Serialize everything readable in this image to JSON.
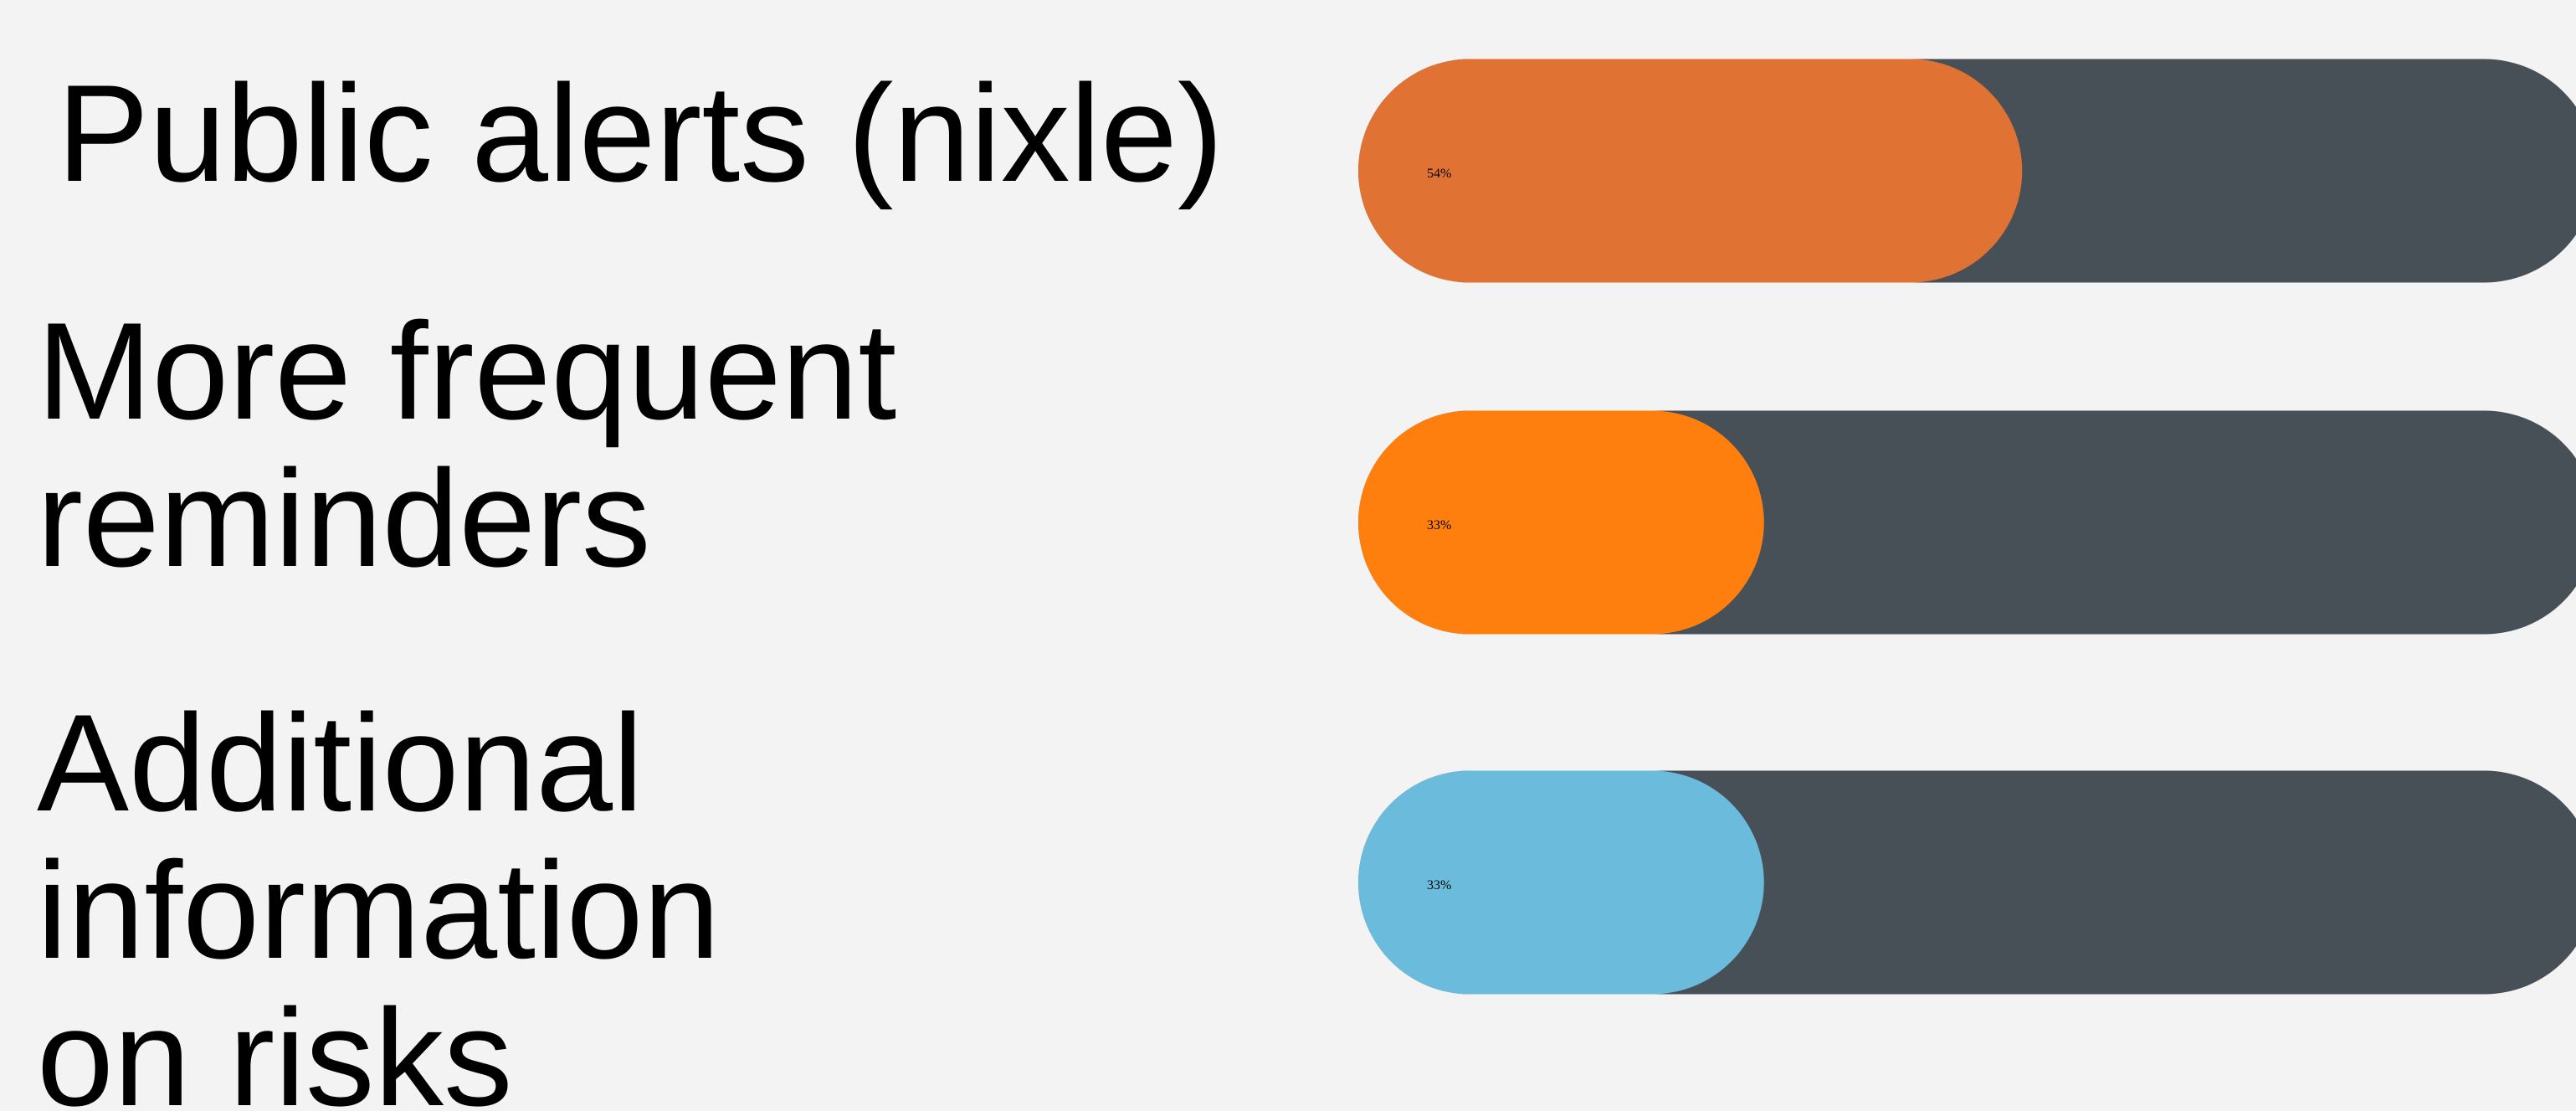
{
  "chart_data": {
    "type": "bar",
    "orientation": "horizontal",
    "categories": [
      "Public alerts (nixle)",
      "More frequent\nreminders",
      "Additional\ninformation\non risks"
    ],
    "values": [
      54,
      33,
      33
    ],
    "value_labels": [
      "54%",
      "33%",
      "33%"
    ],
    "colors": [
      "#e07334",
      "#ff7f0e",
      "#6bbcdc"
    ],
    "track_color": "#474f57",
    "xlim": [
      0,
      100
    ]
  }
}
